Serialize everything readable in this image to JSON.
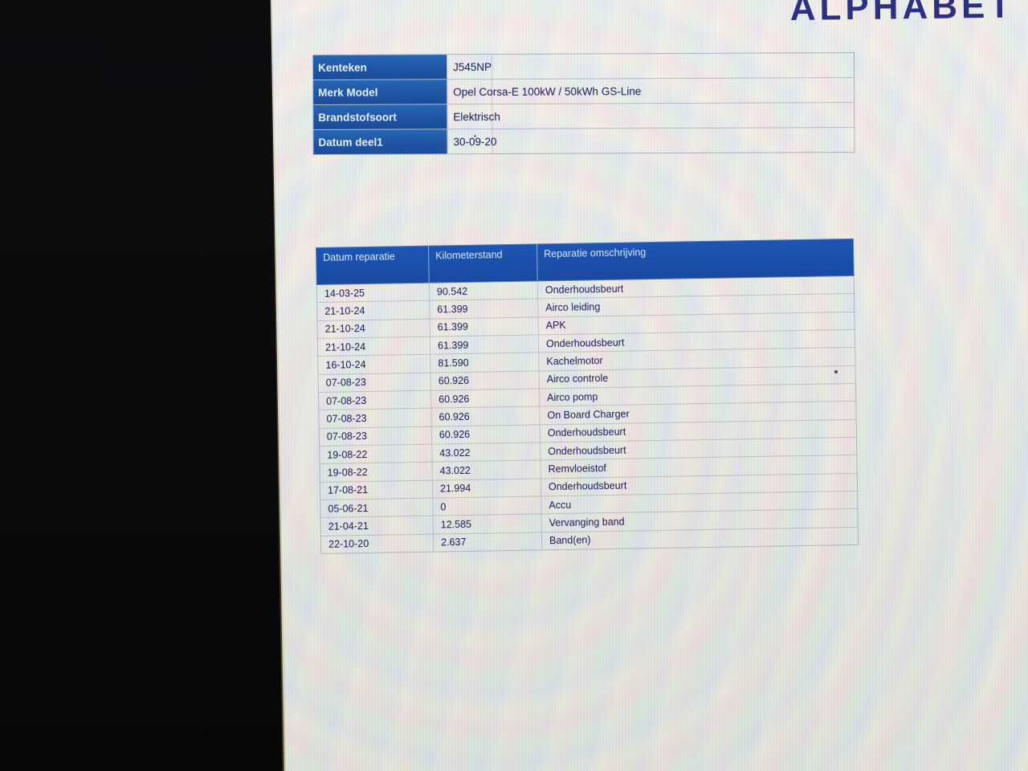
{
  "logo": {
    "text": "ALPHABET"
  },
  "colors": {
    "table_header_blue": "#1b4fab",
    "info_label_blue": "#1f5aa9",
    "dark_navy_text": "#171b5d",
    "logo_navy": "#2b3180"
  },
  "vehicle_info": {
    "rows": [
      {
        "label": "Kenteken",
        "value": "J545NP"
      },
      {
        "label": "Merk Model",
        "value": "Opel Corsa-E 100kW / 50kWh GS-Line"
      },
      {
        "label": "Brandstofsoort",
        "value": "Elektrisch"
      },
      {
        "label": "Datum deel1",
        "value": "30-09-20"
      }
    ]
  },
  "repair_table": {
    "headers": [
      "Datum reparatie",
      "Kilometerstand",
      "Reparatie omschrijving"
    ],
    "rows": [
      [
        "14-03-25",
        "90.542",
        "Onderhoudsbeurt"
      ],
      [
        "21-10-24",
        "61.399",
        "Airco leiding"
      ],
      [
        "21-10-24",
        "61.399",
        "APK"
      ],
      [
        "21-10-24",
        "61.399",
        "Onderhoudsbeurt"
      ],
      [
        "16-10-24",
        "81.590",
        "Kachelmotor"
      ],
      [
        "07-08-23",
        "60.926",
        "Airco controle"
      ],
      [
        "07-08-23",
        "60.926",
        "Airco pomp"
      ],
      [
        "07-08-23",
        "60.926",
        "On Board Charger"
      ],
      [
        "07-08-23",
        "60.926",
        "Onderhoudsbeurt"
      ],
      [
        "19-08-22",
        "43.022",
        "Onderhoudsbeurt"
      ],
      [
        "19-08-22",
        "43.022",
        "Remvloeistof"
      ],
      [
        "17-08-21",
        "21.994",
        "Onderhoudsbeurt"
      ],
      [
        "05-06-21",
        "0",
        "Accu"
      ],
      [
        "21-04-21",
        "12.585",
        "Vervanging band"
      ],
      [
        "22-10-20",
        "2.637",
        "Band(en)"
      ]
    ]
  }
}
